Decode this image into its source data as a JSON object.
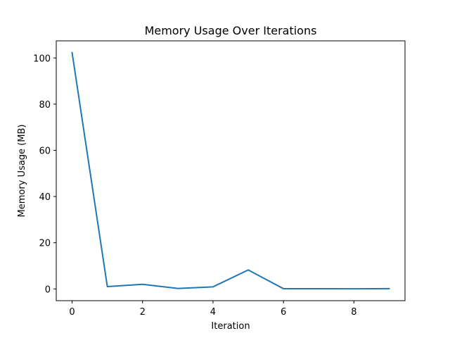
{
  "chart_data": {
    "type": "line",
    "title": "Memory Usage Over Iterations",
    "xlabel": "Iteration",
    "ylabel": "Memory Usage (MB)",
    "x": [
      0,
      1,
      2,
      3,
      4,
      5,
      6,
      7,
      8,
      9
    ],
    "series": [
      {
        "values": [
          102.3,
          1.0,
          2.0,
          0.2,
          0.9,
          8.2,
          0.1,
          0.1,
          0.05,
          0.1
        ],
        "color": "#1f77b4"
      }
    ],
    "xlim": [
      -0.45,
      9.45
    ],
    "ylim": [
      -5.1,
      107.4
    ],
    "xticks": [
      0,
      2,
      4,
      6,
      8
    ],
    "yticks": [
      0,
      20,
      40,
      60,
      80,
      100
    ],
    "grid": false,
    "legend": "none"
  }
}
